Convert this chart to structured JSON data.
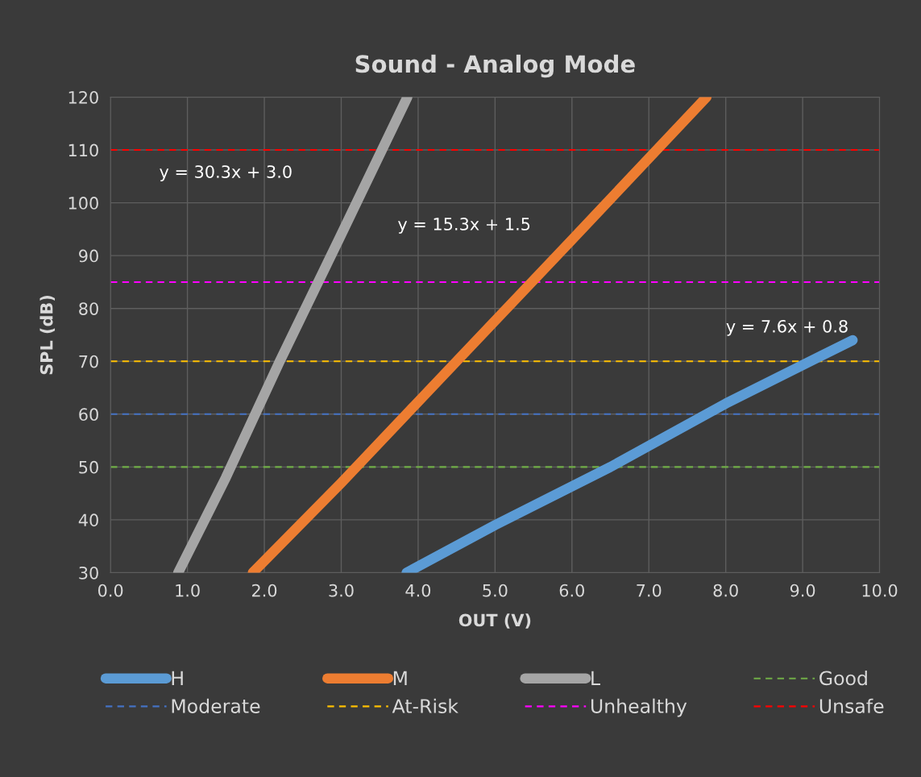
{
  "chart_data": {
    "type": "line",
    "title": "Sound - Analog Mode",
    "xlabel": "OUT (V)",
    "ylabel": "SPL (dB)",
    "series": [
      {
        "name": "H",
        "color": "#5b9bd5",
        "x": [
          3.85,
          5.0,
          6.5,
          8.0,
          9.65
        ],
        "values": [
          30,
          39,
          50,
          62,
          74
        ]
      },
      {
        "name": "M",
        "color": "#ed7d31",
        "x": [
          1.85,
          3.0,
          4.5,
          6.0,
          7.75
        ],
        "values": [
          30,
          47,
          70,
          93,
          120
        ]
      },
      {
        "name": "L",
        "color": "#a5a5a5",
        "x": [
          0.88,
          1.5,
          2.2,
          3.0,
          3.86
        ],
        "values": [
          30,
          48,
          70,
          94,
          120
        ]
      }
    ],
    "ref_lines": [
      {
        "axis": "y",
        "value": 50,
        "label": "Good",
        "color": "#70ad47",
        "line_style": "dashed"
      },
      {
        "axis": "y",
        "value": 60,
        "label": "Moderate",
        "color": "#4472c4",
        "line_style": "dashed"
      },
      {
        "axis": "y",
        "value": 70,
        "label": "At-Risk",
        "color": "#ffc000",
        "line_style": "dashed"
      },
      {
        "axis": "y",
        "value": 85,
        "label": "Unhealthy",
        "color": "#ff00ff",
        "line_style": "dashed"
      },
      {
        "axis": "y",
        "value": 110,
        "label": "Unsafe",
        "color": "#ff0000",
        "line_style": "dashed"
      }
    ],
    "annotations": [
      "y = 30.3x + 3.0",
      "y = 15.3x + 1.5",
      "y = 7.6x + 0.8"
    ],
    "xlim": [
      0,
      10
    ],
    "xticks": [
      {
        "value": 0,
        "label": "0.0"
      },
      {
        "value": 1,
        "label": "1.0"
      },
      {
        "value": 2,
        "label": "2.0"
      },
      {
        "value": 3,
        "label": "3.0"
      },
      {
        "value": 4,
        "label": "4.0"
      },
      {
        "value": 5,
        "label": "5.0"
      },
      {
        "value": 6,
        "label": "6.0"
      },
      {
        "value": 7,
        "label": "7.0"
      },
      {
        "value": 8,
        "label": "8.0"
      },
      {
        "value": 9,
        "label": "9.0"
      },
      {
        "value": 10,
        "label": "10.0"
      }
    ],
    "ylim": [
      30,
      120
    ],
    "yticks": [
      30,
      40,
      50,
      60,
      70,
      80,
      90,
      100,
      110,
      120
    ],
    "grid": true,
    "legend": "bottom",
    "marker": "none",
    "line_style": "solid"
  }
}
